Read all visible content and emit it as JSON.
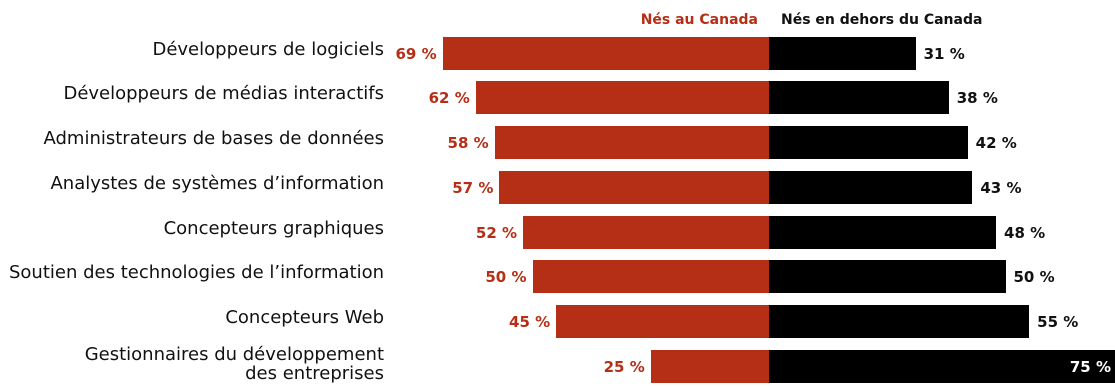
{
  "chart_data": {
    "type": "bar",
    "orientation": "horizontal-diverging",
    "categories": [
      "Développeurs de logiciels",
      "Développeurs de médias interactifs",
      "Administrateurs de bases de données",
      "Analystes de systèmes d’information",
      "Concepteurs graphiques",
      "Soutien des technologies de l’information",
      "Concepteurs Web",
      "Gestionnaires du développement\ndes entreprises"
    ],
    "series": [
      {
        "name": "Nés au Canada",
        "values": [
          69,
          62,
          58,
          57,
          52,
          50,
          45,
          25
        ],
        "labels": [
          "69 %",
          "62 %",
          "58 %",
          "57 %",
          "52 %",
          "50 %",
          "45 %",
          "25 %"
        ],
        "color": "#b52e16"
      },
      {
        "name": "Nés en dehors du Canada",
        "values": [
          31,
          38,
          42,
          43,
          48,
          50,
          55,
          75
        ],
        "labels": [
          "31 %",
          "38 %",
          "42 %",
          "43 %",
          "48 %",
          "50 %",
          "55 %",
          "75 %"
        ],
        "color": "#000000"
      }
    ],
    "legend_position": "top-center",
    "grid": false
  }
}
